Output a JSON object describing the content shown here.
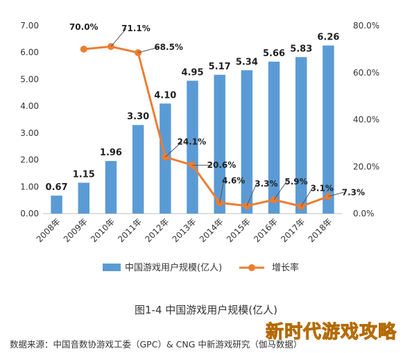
{
  "chart_data": {
    "type": "bar+line",
    "categories": [
      "2008年",
      "2009年",
      "2010年",
      "2011年",
      "2012年",
      "2013年",
      "2014年",
      "2015年",
      "2016年",
      "2017年",
      "2018年"
    ],
    "series": [
      {
        "name": "中国游戏用户规模(亿人)",
        "type": "bar",
        "axis": "left",
        "color": "#5b9bd5",
        "values": [
          0.67,
          1.15,
          1.96,
          3.3,
          4.1,
          4.95,
          5.17,
          5.34,
          5.66,
          5.83,
          6.26
        ],
        "labels": [
          "0.67",
          "1.15",
          "1.96",
          "3.30",
          "4.10",
          "4.95",
          "5.17",
          "5.34",
          "5.66",
          "5.83",
          "6.26"
        ]
      },
      {
        "name": "增长率",
        "type": "line",
        "axis": "right",
        "color": "#ed7d31",
        "values": [
          null,
          70.0,
          71.1,
          68.5,
          24.1,
          20.6,
          4.6,
          3.3,
          5.9,
          3.1,
          7.3
        ],
        "labels": [
          null,
          "70.0%",
          "71.1%",
          "68.5%",
          "24.1%",
          "20.6%",
          "4.6%",
          "3.3%",
          "5.9%",
          "3.1%",
          "7.3%"
        ]
      }
    ],
    "y_left": {
      "range": [
        0,
        7
      ],
      "ticks": [
        "0.00",
        "1.00",
        "2.00",
        "3.00",
        "4.00",
        "5.00",
        "6.00",
        "7.00"
      ]
    },
    "y_right": {
      "range": [
        0,
        80
      ],
      "ticks": [
        "0.0%",
        "20.0%",
        "40.0%",
        "60.0%",
        "80.0%"
      ]
    },
    "grid": false,
    "legend_position": "bottom",
    "caption": "图1-4  中国游戏用户规模(亿人)"
  },
  "footer": {
    "source": "数据来源：中国音数协游戏工委（GPC）& CNG 中新游戏研究（伽马数据）",
    "watermark": "新时代游戏攻略"
  }
}
